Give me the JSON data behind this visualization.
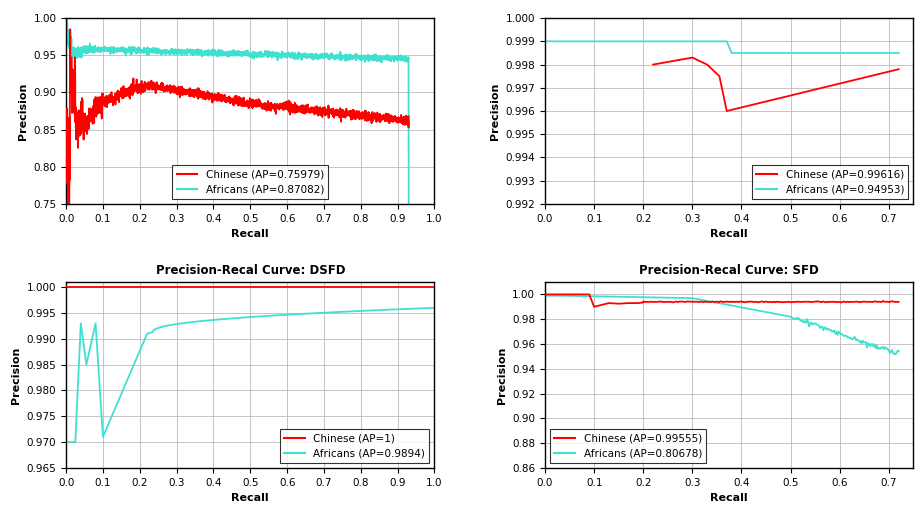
{
  "subplots": [
    {
      "title": "",
      "xlabel": "Recall",
      "ylabel": "Precision",
      "ylim": [
        0.75,
        1.0
      ],
      "xlim": [
        0,
        1.0
      ],
      "yticks": [
        0.75,
        0.8,
        0.85,
        0.9,
        0.95,
        1.0
      ],
      "xticks": [
        0,
        0.1,
        0.2,
        0.3,
        0.4,
        0.5,
        0.6,
        0.7,
        0.8,
        0.9,
        1
      ],
      "legend_loc": "lower center",
      "legend": [
        {
          "label": "Chinese (AP=0.75979)",
          "color": "#FF0000"
        },
        {
          "label": "Africans (AP=0.87082)",
          "color": "#40E0D0"
        }
      ]
    },
    {
      "title": "",
      "xlabel": "Recall",
      "ylabel": "Precision",
      "ylim": [
        0.992,
        1.0
      ],
      "xlim": [
        0,
        0.75
      ],
      "yticks": [
        0.992,
        0.993,
        0.994,
        0.995,
        0.996,
        0.997,
        0.998,
        0.999,
        1.0
      ],
      "xticks": [
        0,
        0.1,
        0.2,
        0.3,
        0.4,
        0.5,
        0.6,
        0.7
      ],
      "legend_loc": "lower right",
      "legend": [
        {
          "label": "Chinese (AP=0.99616)",
          "color": "#FF0000"
        },
        {
          "label": "Africans (AP=0.94953)",
          "color": "#40E0D0"
        }
      ]
    },
    {
      "title": "Precision-Recal Curve: DSFD",
      "xlabel": "Recall",
      "ylabel": "Precision",
      "ylim": [
        0.965,
        1.001
      ],
      "xlim": [
        0,
        1.0
      ],
      "yticks": [
        0.965,
        0.97,
        0.975,
        0.98,
        0.985,
        0.99,
        0.995,
        1.0
      ],
      "xticks": [
        0,
        0.1,
        0.2,
        0.3,
        0.4,
        0.5,
        0.6,
        0.7,
        0.8,
        0.9,
        1
      ],
      "legend_loc": "lower right",
      "legend": [
        {
          "label": "Chinese (AP=1)",
          "color": "#FF0000"
        },
        {
          "label": "Africans (AP=0.9894)",
          "color": "#40E0D0"
        }
      ]
    },
    {
      "title": "Precision-Recal Curve: SFD",
      "xlabel": "Recall",
      "ylabel": "Precision",
      "ylim": [
        0.86,
        1.01
      ],
      "xlim": [
        0,
        0.75
      ],
      "yticks": [
        0.86,
        0.88,
        0.9,
        0.92,
        0.94,
        0.96,
        0.98,
        1.0
      ],
      "xticks": [
        0,
        0.1,
        0.2,
        0.3,
        0.4,
        0.5,
        0.6,
        0.7
      ],
      "legend_loc": "lower left",
      "legend": [
        {
          "label": "Chinese (AP=0.99555)",
          "color": "#FF0000"
        },
        {
          "label": "Africans (AP=0.80678)",
          "color": "#40E0D0"
        }
      ]
    }
  ],
  "figure_bg": "#ffffff",
  "axes_bg": "#ffffff",
  "grid_color": "#bbbbbb",
  "title_fontsize": 8.5,
  "label_fontsize": 8,
  "tick_fontsize": 7.5,
  "legend_fontsize": 7.5
}
